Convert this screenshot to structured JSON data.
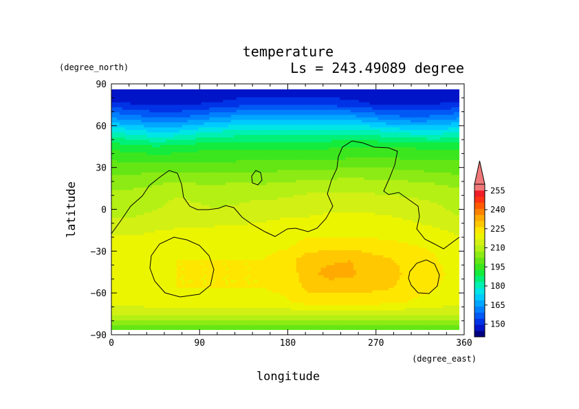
{
  "chart_data": {
    "type": "heatmap",
    "title": "temperature",
    "subtitle": "Ls = 243.49089 degree",
    "xlabel": "longitude",
    "ylabel": "latitude",
    "x_unit": "(degree_east)",
    "y_unit": "(degree_north)",
    "xlim": [
      0,
      360
    ],
    "ylim": [
      -90,
      90
    ],
    "x_ticks": [
      0,
      90,
      180,
      270,
      360
    ],
    "y_ticks": [
      -90,
      -60,
      -30,
      0,
      30,
      60,
      90
    ],
    "x_tick_labels": [
      "0",
      "90",
      "180",
      "270",
      "360"
    ],
    "y_tick_labels": [
      "−90",
      "−60",
      "−30",
      "0",
      "30",
      "60",
      "90"
    ],
    "colorbar": {
      "levels": [
        140,
        145,
        150,
        155,
        160,
        165,
        170,
        175,
        180,
        185,
        190,
        195,
        200,
        205,
        210,
        215,
        220,
        225,
        230,
        235,
        240,
        245,
        250,
        255,
        260
      ],
      "colors": [
        "#00007f",
        "#0014c8",
        "#0033e6",
        "#0059f5",
        "#0080ff",
        "#00a6ff",
        "#00cbff",
        "#00e6e6",
        "#00f0b4",
        "#00f078",
        "#14eb3c",
        "#3ce61e",
        "#64e614",
        "#8ceb14",
        "#b4f014",
        "#d2f014",
        "#ecf500",
        "#ffe600",
        "#ffc800",
        "#ffaa00",
        "#ff8200",
        "#ff5a00",
        "#ff3214",
        "#f01e28",
        "#f07878"
      ],
      "tick_values": [
        150,
        165,
        180,
        195,
        210,
        225,
        240,
        255
      ],
      "tick_labels": [
        "150",
        "165",
        "180",
        "195",
        "210",
        "225",
        "240",
        "255"
      ],
      "extend": "max"
    },
    "grid_x": [
      0,
      22.5,
      45,
      67.5,
      90,
      112.5,
      135,
      157.5,
      180,
      202.5,
      225,
      247.5,
      270,
      292.5,
      315,
      337.5,
      360
    ],
    "grid_y": [
      -85,
      -75,
      -65,
      -55,
      -45,
      -35,
      -25,
      -15,
      -5,
      5,
      15,
      25,
      35,
      45,
      55,
      65,
      75,
      85
    ],
    "values": [
      [
        200,
        200,
        200,
        200,
        200,
        200,
        200,
        200,
        200,
        200,
        200,
        200,
        200,
        200,
        200,
        200,
        200
      ],
      [
        214,
        214,
        215,
        215,
        215,
        215,
        215,
        215,
        215,
        215,
        215,
        215,
        215,
        215,
        215,
        214,
        214
      ],
      [
        222,
        222,
        223,
        223,
        223,
        223,
        223,
        224,
        224,
        227,
        227,
        227,
        227,
        226,
        224,
        223,
        222
      ],
      [
        223,
        223,
        224,
        225,
        225,
        225,
        225,
        225,
        226,
        231,
        232,
        232,
        231,
        230,
        227,
        225,
        223
      ],
      [
        223,
        223,
        224,
        225,
        225,
        225,
        225,
        225,
        226,
        233,
        237,
        236,
        232,
        231,
        228,
        226,
        223
      ],
      [
        223,
        223,
        224,
        225,
        225,
        225,
        225,
        225,
        227,
        233,
        234,
        235,
        232,
        230,
        228,
        225,
        223
      ],
      [
        222,
        222,
        223,
        223,
        224,
        224,
        224,
        224,
        224,
        227,
        228,
        228,
        227,
        226,
        225,
        224,
        222
      ],
      [
        219,
        219,
        220,
        221,
        221,
        222,
        222,
        222,
        222,
        223,
        223,
        223,
        223,
        223,
        222,
        221,
        219
      ],
      [
        215,
        215,
        216,
        216,
        216,
        217,
        218,
        219,
        220,
        220,
        221,
        221,
        221,
        220,
        219,
        217,
        215
      ],
      [
        213,
        213,
        214,
        216,
        215,
        214,
        215,
        216,
        216,
        217,
        218,
        218,
        217,
        217,
        216,
        215,
        213
      ],
      [
        210,
        210,
        211,
        214,
        212,
        212,
        213,
        212,
        213,
        214,
        214,
        214,
        214,
        213,
        213,
        212,
        210
      ],
      [
        205,
        205,
        206,
        206,
        206,
        206,
        206,
        206,
        207,
        207,
        208,
        209,
        208,
        208,
        207,
        206,
        205
      ],
      [
        200,
        199,
        199,
        199,
        199,
        199,
        200,
        200,
        200,
        200,
        200,
        201,
        201,
        201,
        200,
        200,
        200
      ],
      [
        193,
        192,
        190,
        191,
        193,
        193,
        194,
        194,
        194,
        194,
        194,
        195,
        195,
        195,
        194,
        193,
        193
      ],
      [
        180,
        178,
        175,
        176,
        179,
        181,
        182,
        182,
        183,
        183,
        183,
        183,
        182,
        180,
        178,
        178,
        180
      ],
      [
        165,
        163,
        160,
        160,
        163,
        166,
        168,
        168,
        169,
        169,
        169,
        168,
        165,
        162,
        161,
        162,
        165
      ],
      [
        151,
        150,
        149,
        149,
        150,
        151,
        153,
        153,
        154,
        154,
        153,
        152,
        150,
        149,
        149,
        150,
        151
      ],
      [
        145,
        145,
        145,
        145,
        145,
        145,
        146,
        146,
        146,
        146,
        146,
        146,
        145,
        145,
        145,
        145,
        145
      ]
    ]
  }
}
